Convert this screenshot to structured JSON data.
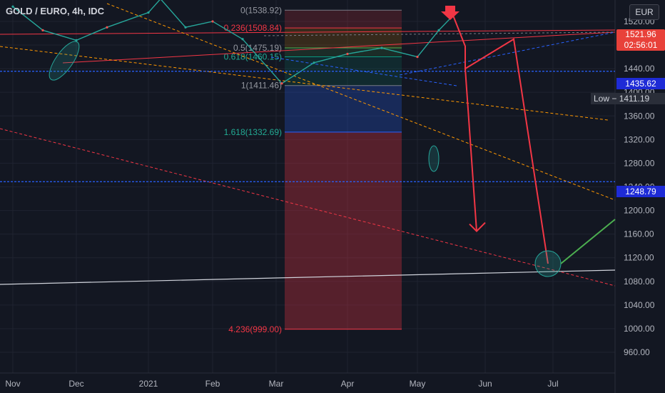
{
  "header": {
    "symbol_title": "GOLD / EURO, 4h, IDC",
    "currency_button": "EUR"
  },
  "price_tag": {
    "price": "1521.96",
    "countdown": "02:56:01"
  },
  "horizontal_levels": [
    {
      "label": "1435.62",
      "value": 1435.62
    },
    {
      "label": "1248.79",
      "value": 1248.79
    }
  ],
  "low_tag": {
    "label": "Low",
    "value": "1411.19"
  },
  "colors": {
    "background": "#131722",
    "up": "#26a69a",
    "down": "#ef5350",
    "projection": "#f23645",
    "horizontal_level": "#2962ff",
    "target_green": "#4caf50"
  },
  "chart_data": {
    "type": "line",
    "title": "GOLD / EURO, 4h, IDC",
    "x_ticks": [
      "Nov",
      "Dec",
      "2021",
      "Feb",
      "Mar",
      "Apr",
      "May",
      "Jun",
      "Jul"
    ],
    "y_ticks": [
      960,
      1000,
      1040,
      1080,
      1120,
      1160,
      1200,
      1240,
      1280,
      1320,
      1360,
      1400,
      1440,
      1480,
      1520
    ],
    "ylim": [
      925,
      1555
    ],
    "fibonacci": [
      {
        "ratio": "0",
        "value": 1538.92,
        "label": "0(1538.92)"
      },
      {
        "ratio": "0.236",
        "value": 1508.84,
        "label": "0.236(1508.84)"
      },
      {
        "ratio": "0.5",
        "value": 1475.19,
        "label": "0.5(1475.19)"
      },
      {
        "ratio": "0.618",
        "value": 1460.15,
        "label": "0.618(1460.15)"
      },
      {
        "ratio": "1",
        "value": 1411.46,
        "label": "1(1411.46)"
      },
      {
        "ratio": "1.618",
        "value": 1332.69,
        "label": "1.618(1332.69)"
      },
      {
        "ratio": "4.236",
        "value": 999.0,
        "label": "4.236(999.00)"
      }
    ],
    "price_series": {
      "name": "",
      "x": [
        "Nov",
        "Nov 15",
        "Dec",
        "Dec 15",
        "2021",
        "Jan 10",
        "Jan 20",
        "Feb",
        "Feb 15",
        "Mar",
        "Mar 15",
        "Apr",
        "Apr 15",
        "May",
        "May 10",
        "May 18"
      ],
      "values": [
        1545,
        1505,
        1488,
        1510,
        1535,
        1558,
        1510,
        1520,
        1490,
        1415,
        1450,
        1465,
        1475,
        1460,
        1505,
        1530
      ]
    },
    "projection_path": [
      1530,
      1478,
      1440,
      1490,
      1110
    ],
    "projection_alt_target": 1165,
    "target_circle_value": 1110
  }
}
